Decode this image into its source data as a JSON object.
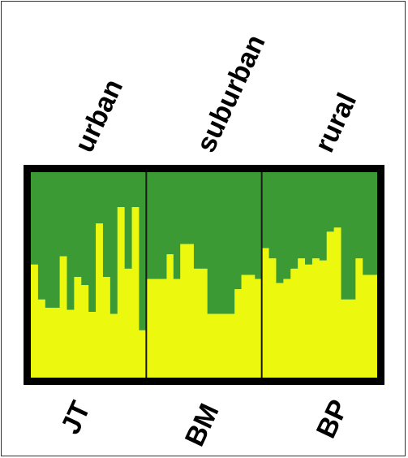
{
  "chart_data": {
    "type": "bar",
    "stacked": true,
    "normalized": true,
    "ylim": [
      0,
      1
    ],
    "top_labels": [
      "urban",
      "suburban",
      "rural"
    ],
    "group_labels": [
      "JT",
      "BM",
      "BP"
    ],
    "colors": {
      "lower": "#ecf80e",
      "upper": "#3c9a35",
      "frame": "#000000",
      "separator": "#1a1a1a"
    },
    "groups": [
      {
        "name": "JT",
        "lower": [
          0.55,
          0.38,
          0.34,
          0.34,
          0.59,
          0.33,
          0.49,
          0.45,
          0.32,
          0.75,
          0.49,
          0.31,
          0.83,
          0.53,
          0.83,
          0.23
        ]
      },
      {
        "name": "BM",
        "lower": [
          0.48,
          0.48,
          0.48,
          0.6,
          0.48,
          0.65,
          0.65,
          0.53,
          0.53,
          0.31,
          0.31,
          0.31,
          0.31,
          0.43,
          0.5,
          0.5,
          0.48
        ]
      },
      {
        "name": "BP",
        "lower": [
          0.63,
          0.58,
          0.46,
          0.48,
          0.53,
          0.58,
          0.55,
          0.58,
          0.57,
          0.71,
          0.73,
          0.38,
          0.38,
          0.58,
          0.5,
          0.5
        ]
      }
    ]
  }
}
